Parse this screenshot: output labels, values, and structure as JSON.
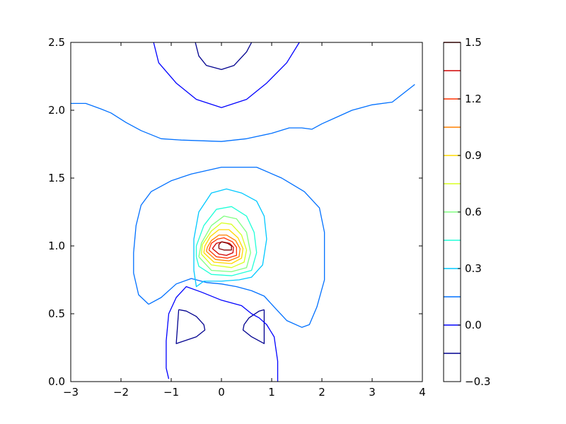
{
  "chart_data": {
    "type": "contour",
    "title": "",
    "xlabel": "",
    "ylabel": "",
    "xlim": [
      -3,
      4
    ],
    "ylim": [
      0,
      2.5
    ],
    "xticks": [
      -3,
      -2,
      -1,
      0,
      1,
      2,
      3,
      4
    ],
    "xtick_labels": [
      "−3",
      "−2",
      "−1",
      "0",
      "1",
      "2",
      "3",
      "4"
    ],
    "yticks": [
      0.0,
      0.5,
      1.0,
      1.5,
      2.0,
      2.5
    ],
    "ytick_labels": [
      "0.0",
      "0.5",
      "1.0",
      "1.5",
      "2.0",
      "2.5"
    ],
    "grid": false,
    "colormap": "jet",
    "colorbar": {
      "range": [
        -0.3,
        1.5
      ],
      "ticks": [
        -0.3,
        0.0,
        0.3,
        0.6,
        0.9,
        1.2,
        1.5
      ],
      "tick_labels": [
        "−0.3",
        "0.0",
        "0.3",
        "0.6",
        "0.9",
        "1.2",
        "1.5"
      ]
    },
    "levels": [
      {
        "value": -0.15,
        "color": "#00008f"
      },
      {
        "value": 0.0,
        "color": "#0000ff"
      },
      {
        "value": 0.15,
        "color": "#0070ff"
      },
      {
        "value": 0.3,
        "color": "#00c8ff"
      },
      {
        "value": 0.45,
        "color": "#20ffd8"
      },
      {
        "value": 0.6,
        "color": "#80ff80"
      },
      {
        "value": 0.75,
        "color": "#d8ff20"
      },
      {
        "value": 0.9,
        "color": "#ffd800"
      },
      {
        "value": 1.05,
        "color": "#ff8000"
      },
      {
        "value": 1.2,
        "color": "#ff3000"
      },
      {
        "value": 1.35,
        "color": "#d00000"
      },
      {
        "value": 1.5,
        "color": "#800000"
      }
    ],
    "contours": [
      {
        "level": -0.15,
        "points": [
          [
            -0.52,
            2.5
          ],
          [
            -0.45,
            2.4
          ],
          [
            -0.3,
            2.33
          ],
          [
            0.0,
            2.3
          ],
          [
            0.25,
            2.33
          ],
          [
            0.5,
            2.43
          ],
          [
            0.6,
            2.5
          ]
        ]
      },
      {
        "level": 0.0,
        "points": [
          [
            -1.35,
            2.5
          ],
          [
            -1.25,
            2.35
          ],
          [
            -0.9,
            2.2
          ],
          [
            -0.5,
            2.08
          ],
          [
            0.0,
            2.02
          ],
          [
            0.5,
            2.08
          ],
          [
            0.9,
            2.2
          ],
          [
            1.3,
            2.35
          ],
          [
            1.55,
            2.5
          ]
        ]
      },
      {
        "level": 0.15,
        "points": [
          [
            -3.0,
            2.05
          ],
          [
            -2.7,
            2.05
          ],
          [
            -2.4,
            2.01
          ],
          [
            -2.2,
            1.98
          ],
          [
            -1.9,
            1.91
          ],
          [
            -1.6,
            1.85
          ],
          [
            -1.2,
            1.79
          ],
          [
            -0.8,
            1.78
          ],
          [
            0.0,
            1.77
          ],
          [
            0.5,
            1.79
          ],
          [
            1.0,
            1.83
          ],
          [
            1.35,
            1.87
          ],
          [
            1.6,
            1.87
          ],
          [
            1.8,
            1.86
          ],
          [
            2.0,
            1.9
          ],
          [
            2.3,
            1.95
          ],
          [
            2.6,
            2.0
          ],
          [
            3.0,
            2.04
          ],
          [
            3.4,
            2.06
          ],
          [
            3.85,
            2.19
          ]
        ]
      },
      {
        "level": -0.15,
        "points": [
          [
            -0.85,
            0.53
          ],
          [
            -0.7,
            0.52
          ],
          [
            -0.5,
            0.48
          ],
          [
            -0.35,
            0.42
          ],
          [
            -0.33,
            0.38
          ],
          [
            -0.5,
            0.33
          ],
          [
            -0.9,
            0.28
          ],
          [
            -0.85,
            0.53
          ]
        ]
      },
      {
        "level": -0.15,
        "points": [
          [
            0.85,
            0.53
          ],
          [
            0.75,
            0.52
          ],
          [
            0.55,
            0.47
          ],
          [
            0.45,
            0.42
          ],
          [
            0.43,
            0.38
          ],
          [
            0.6,
            0.33
          ],
          [
            0.85,
            0.28
          ],
          [
            0.85,
            0.53
          ]
        ]
      },
      {
        "level": 0.0,
        "points": [
          [
            -1.05,
            0.02
          ],
          [
            -1.1,
            0.1
          ],
          [
            -1.1,
            0.3
          ],
          [
            -1.05,
            0.5
          ],
          [
            -0.9,
            0.62
          ],
          [
            -0.7,
            0.7
          ],
          [
            -0.4,
            0.66
          ],
          [
            0.0,
            0.6
          ],
          [
            0.4,
            0.56
          ],
          [
            0.6,
            0.5
          ],
          [
            0.75,
            0.47
          ],
          [
            0.9,
            0.42
          ],
          [
            1.05,
            0.33
          ],
          [
            1.12,
            0.15
          ],
          [
            1.12,
            0.0
          ]
        ]
      },
      {
        "level": 0.15,
        "points": [
          [
            -1.45,
            0.57
          ],
          [
            -1.65,
            0.64
          ],
          [
            -1.75,
            0.8
          ],
          [
            -1.75,
            0.95
          ],
          [
            -1.7,
            1.15
          ],
          [
            -1.6,
            1.3
          ],
          [
            -1.4,
            1.4
          ],
          [
            -1.0,
            1.48
          ],
          [
            -0.6,
            1.53
          ],
          [
            0.0,
            1.58
          ],
          [
            0.7,
            1.58
          ],
          [
            1.2,
            1.5
          ],
          [
            1.65,
            1.4
          ],
          [
            1.95,
            1.28
          ],
          [
            2.05,
            1.1
          ],
          [
            2.05,
            0.75
          ],
          [
            1.9,
            0.55
          ],
          [
            1.75,
            0.42
          ],
          [
            1.6,
            0.4
          ],
          [
            1.3,
            0.45
          ],
          [
            1.05,
            0.55
          ],
          [
            0.85,
            0.63
          ],
          [
            0.6,
            0.67
          ],
          [
            0.3,
            0.7
          ],
          [
            0.0,
            0.72
          ],
          [
            -0.3,
            0.73
          ],
          [
            -0.6,
            0.76
          ],
          [
            -0.9,
            0.72
          ],
          [
            -1.2,
            0.62
          ],
          [
            -1.45,
            0.57
          ]
        ]
      },
      {
        "level": 0.3,
        "points": [
          [
            -0.55,
            0.82
          ],
          [
            -0.5,
            0.7
          ],
          [
            -0.35,
            0.74
          ],
          [
            0.0,
            0.74
          ],
          [
            0.35,
            0.75
          ],
          [
            0.6,
            0.77
          ],
          [
            0.82,
            0.86
          ],
          [
            0.9,
            1.05
          ],
          [
            0.85,
            1.22
          ],
          [
            0.7,
            1.33
          ],
          [
            0.4,
            1.39
          ],
          [
            0.1,
            1.42
          ],
          [
            -0.2,
            1.39
          ],
          [
            -0.45,
            1.25
          ],
          [
            -0.55,
            1.05
          ],
          [
            -0.55,
            0.82
          ]
        ]
      },
      {
        "level": 0.45,
        "points": [
          [
            -0.5,
            0.92
          ],
          [
            -0.45,
            0.85
          ],
          [
            -0.2,
            0.79
          ],
          [
            0.2,
            0.78
          ],
          [
            0.6,
            0.82
          ],
          [
            0.7,
            0.95
          ],
          [
            0.65,
            1.1
          ],
          [
            0.5,
            1.22
          ],
          [
            0.2,
            1.29
          ],
          [
            -0.1,
            1.27
          ],
          [
            -0.35,
            1.15
          ],
          [
            -0.5,
            1.0
          ],
          [
            -0.5,
            0.92
          ]
        ]
      },
      {
        "level": 0.6,
        "points": [
          [
            -0.45,
            0.92
          ],
          [
            -0.2,
            0.82
          ],
          [
            0.2,
            0.81
          ],
          [
            0.5,
            0.84
          ],
          [
            0.58,
            0.95
          ],
          [
            0.5,
            1.1
          ],
          [
            0.3,
            1.2
          ],
          [
            0.05,
            1.22
          ],
          [
            -0.2,
            1.15
          ],
          [
            -0.4,
            1.02
          ],
          [
            -0.45,
            0.92
          ]
        ]
      },
      {
        "level": 0.75,
        "points": [
          [
            -0.4,
            0.94
          ],
          [
            -0.2,
            0.86
          ],
          [
            0.2,
            0.84
          ],
          [
            0.45,
            0.88
          ],
          [
            0.5,
            0.97
          ],
          [
            0.4,
            1.08
          ],
          [
            0.2,
            1.16
          ],
          [
            0.0,
            1.17
          ],
          [
            -0.2,
            1.11
          ],
          [
            -0.38,
            1.01
          ],
          [
            -0.4,
            0.94
          ]
        ]
      },
      {
        "level": 0.9,
        "points": [
          [
            -0.35,
            0.95
          ],
          [
            -0.15,
            0.88
          ],
          [
            0.2,
            0.87
          ],
          [
            0.4,
            0.91
          ],
          [
            0.43,
            0.98
          ],
          [
            0.33,
            1.06
          ],
          [
            0.15,
            1.12
          ],
          [
            -0.05,
            1.12
          ],
          [
            -0.22,
            1.07
          ],
          [
            -0.33,
            1.0
          ],
          [
            -0.35,
            0.95
          ]
        ]
      },
      {
        "level": 1.05,
        "points": [
          [
            -0.3,
            0.96
          ],
          [
            -0.12,
            0.9
          ],
          [
            0.15,
            0.89
          ],
          [
            0.35,
            0.92
          ],
          [
            0.37,
            0.98
          ],
          [
            0.28,
            1.04
          ],
          [
            0.1,
            1.08
          ],
          [
            -0.05,
            1.08
          ],
          [
            -0.2,
            1.04
          ],
          [
            -0.28,
            0.99
          ],
          [
            -0.3,
            0.96
          ]
        ]
      },
      {
        "level": 1.2,
        "points": [
          [
            -0.25,
            0.97
          ],
          [
            -0.1,
            0.92
          ],
          [
            0.12,
            0.91
          ],
          [
            0.3,
            0.93
          ],
          [
            0.3,
            0.99
          ],
          [
            0.22,
            1.03
          ],
          [
            0.05,
            1.06
          ],
          [
            -0.08,
            1.05
          ],
          [
            -0.2,
            1.02
          ],
          [
            -0.25,
            0.97
          ]
        ]
      },
      {
        "level": 1.35,
        "points": [
          [
            -0.18,
            0.98
          ],
          [
            -0.05,
            0.94
          ],
          [
            0.1,
            0.93
          ],
          [
            0.23,
            0.95
          ],
          [
            0.24,
            0.99
          ],
          [
            0.16,
            1.02
          ],
          [
            0.02,
            1.03
          ],
          [
            -0.1,
            1.02
          ],
          [
            -0.18,
            0.98
          ]
        ]
      },
      {
        "level": 1.5,
        "points": [
          [
            -0.05,
            0.98
          ],
          [
            0.05,
            0.97
          ],
          [
            0.2,
            0.97
          ],
          [
            0.2,
            1.0
          ],
          [
            0.12,
            1.02
          ],
          [
            0.0,
            1.03
          ],
          [
            -0.05,
            1.01
          ],
          [
            -0.05,
            0.98
          ]
        ]
      }
    ]
  }
}
